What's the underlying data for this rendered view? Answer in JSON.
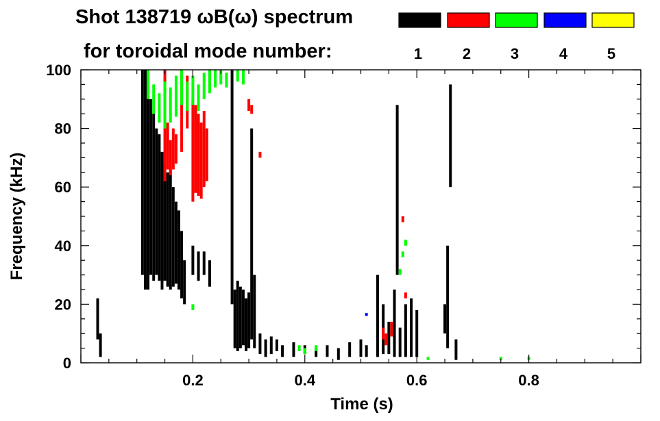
{
  "chart_data": {
    "type": "heatmap",
    "title_line1": "Shot 138719 ωB(ω) spectrum",
    "title_line2": "for toroidal mode number:",
    "xlabel": "Time (s)",
    "ylabel": "Frequency (kHz)",
    "xlim": [
      0.0,
      1.0
    ],
    "ylim": [
      0,
      100
    ],
    "x_ticks": [
      0.2,
      0.4,
      0.6,
      0.8
    ],
    "y_ticks": [
      0,
      20,
      40,
      60,
      80,
      100
    ],
    "grid": false,
    "legend_placement": "top-right",
    "legend": [
      {
        "mode": "1",
        "color": "#000000"
      },
      {
        "mode": "2",
        "color": "#ff0000"
      },
      {
        "mode": "3",
        "color": "#00ff00"
      },
      {
        "mode": "4",
        "color": "#0000ff"
      },
      {
        "mode": "5",
        "color": "#ffff00"
      }
    ],
    "series": [
      {
        "mode": 1,
        "color": "#000000",
        "segments": [
          [
            0.03,
            8,
            22
          ],
          [
            0.035,
            2,
            10
          ],
          [
            0.11,
            30,
            100
          ],
          [
            0.115,
            25,
            100
          ],
          [
            0.12,
            25,
            98
          ],
          [
            0.125,
            30,
            90
          ],
          [
            0.13,
            28,
            85
          ],
          [
            0.135,
            30,
            80
          ],
          [
            0.14,
            28,
            78
          ],
          [
            0.145,
            25,
            72
          ],
          [
            0.15,
            28,
            68
          ],
          [
            0.155,
            26,
            65
          ],
          [
            0.16,
            25,
            66
          ],
          [
            0.165,
            26,
            60
          ],
          [
            0.17,
            27,
            55
          ],
          [
            0.175,
            25,
            52
          ],
          [
            0.18,
            22,
            45
          ],
          [
            0.185,
            20,
            35
          ],
          [
            0.2,
            30,
            40
          ],
          [
            0.21,
            28,
            38
          ],
          [
            0.22,
            30,
            38
          ],
          [
            0.23,
            26,
            35
          ],
          [
            0.27,
            20,
            100
          ],
          [
            0.275,
            5,
            25
          ],
          [
            0.28,
            4,
            28
          ],
          [
            0.285,
            5,
            26
          ],
          [
            0.29,
            6,
            25
          ],
          [
            0.295,
            4,
            22
          ],
          [
            0.3,
            5,
            24
          ],
          [
            0.305,
            8,
            80
          ],
          [
            0.31,
            5,
            30
          ],
          [
            0.32,
            3,
            10
          ],
          [
            0.33,
            2,
            8
          ],
          [
            0.34,
            3,
            9
          ],
          [
            0.35,
            4,
            8
          ],
          [
            0.36,
            2,
            6
          ],
          [
            0.38,
            2,
            7
          ],
          [
            0.4,
            3,
            6
          ],
          [
            0.42,
            2,
            5
          ],
          [
            0.44,
            2,
            6
          ],
          [
            0.46,
            1,
            5
          ],
          [
            0.48,
            2,
            7
          ],
          [
            0.5,
            2,
            8
          ],
          [
            0.51,
            2,
            6
          ],
          [
            0.53,
            2,
            30
          ],
          [
            0.54,
            3,
            20
          ],
          [
            0.55,
            3,
            14
          ],
          [
            0.56,
            2,
            25
          ],
          [
            0.565,
            30,
            88
          ],
          [
            0.57,
            2,
            12
          ],
          [
            0.58,
            2,
            20
          ],
          [
            0.59,
            2,
            22
          ],
          [
            0.6,
            2,
            18
          ],
          [
            0.65,
            10,
            20
          ],
          [
            0.655,
            5,
            40
          ],
          [
            0.66,
            60,
            95
          ],
          [
            0.67,
            1,
            8
          ]
        ]
      },
      {
        "mode": 2,
        "color": "#ff0000",
        "segments": [
          [
            0.15,
            62,
            100
          ],
          [
            0.155,
            66,
            82
          ],
          [
            0.16,
            64,
            76
          ],
          [
            0.165,
            66,
            80
          ],
          [
            0.17,
            68,
            78
          ],
          [
            0.18,
            72,
            100
          ],
          [
            0.19,
            80,
            98
          ],
          [
            0.2,
            55,
            90
          ],
          [
            0.205,
            58,
            88
          ],
          [
            0.21,
            57,
            85
          ],
          [
            0.215,
            56,
            82
          ],
          [
            0.22,
            60,
            86
          ],
          [
            0.225,
            62,
            80
          ],
          [
            0.3,
            86,
            90
          ],
          [
            0.305,
            85,
            88
          ],
          [
            0.32,
            70,
            72
          ],
          [
            0.54,
            8,
            12
          ],
          [
            0.545,
            6,
            10
          ],
          [
            0.555,
            9,
            14
          ],
          [
            0.575,
            48,
            50
          ],
          [
            0.58,
            22,
            24
          ]
        ]
      },
      {
        "mode": 3,
        "color": "#00ff00",
        "segments": [
          [
            0.12,
            90,
            100
          ],
          [
            0.13,
            85,
            95
          ],
          [
            0.14,
            82,
            92
          ],
          [
            0.15,
            80,
            96
          ],
          [
            0.16,
            82,
            94
          ],
          [
            0.17,
            84,
            98
          ],
          [
            0.18,
            88,
            100
          ],
          [
            0.19,
            86,
            96
          ],
          [
            0.2,
            88,
            98
          ],
          [
            0.21,
            86,
            95
          ],
          [
            0.22,
            90,
            99
          ],
          [
            0.23,
            92,
            100
          ],
          [
            0.24,
            94,
            100
          ],
          [
            0.25,
            95,
            100
          ],
          [
            0.26,
            94,
            99
          ],
          [
            0.28,
            96,
            100
          ],
          [
            0.29,
            95,
            100
          ],
          [
            0.2,
            18,
            20
          ],
          [
            0.39,
            4,
            6
          ],
          [
            0.4,
            3,
            5
          ],
          [
            0.42,
            4,
            6
          ],
          [
            0.57,
            30,
            32
          ],
          [
            0.575,
            36,
            38
          ],
          [
            0.58,
            40,
            42
          ],
          [
            0.62,
            1,
            2
          ],
          [
            0.75,
            1,
            2
          ],
          [
            0.8,
            1,
            2
          ]
        ]
      },
      {
        "mode": 4,
        "color": "#0000ff",
        "segments": [
          [
            0.51,
            16,
            17
          ]
        ]
      },
      {
        "mode": 5,
        "color": "#ffff00",
        "segments": []
      }
    ]
  }
}
